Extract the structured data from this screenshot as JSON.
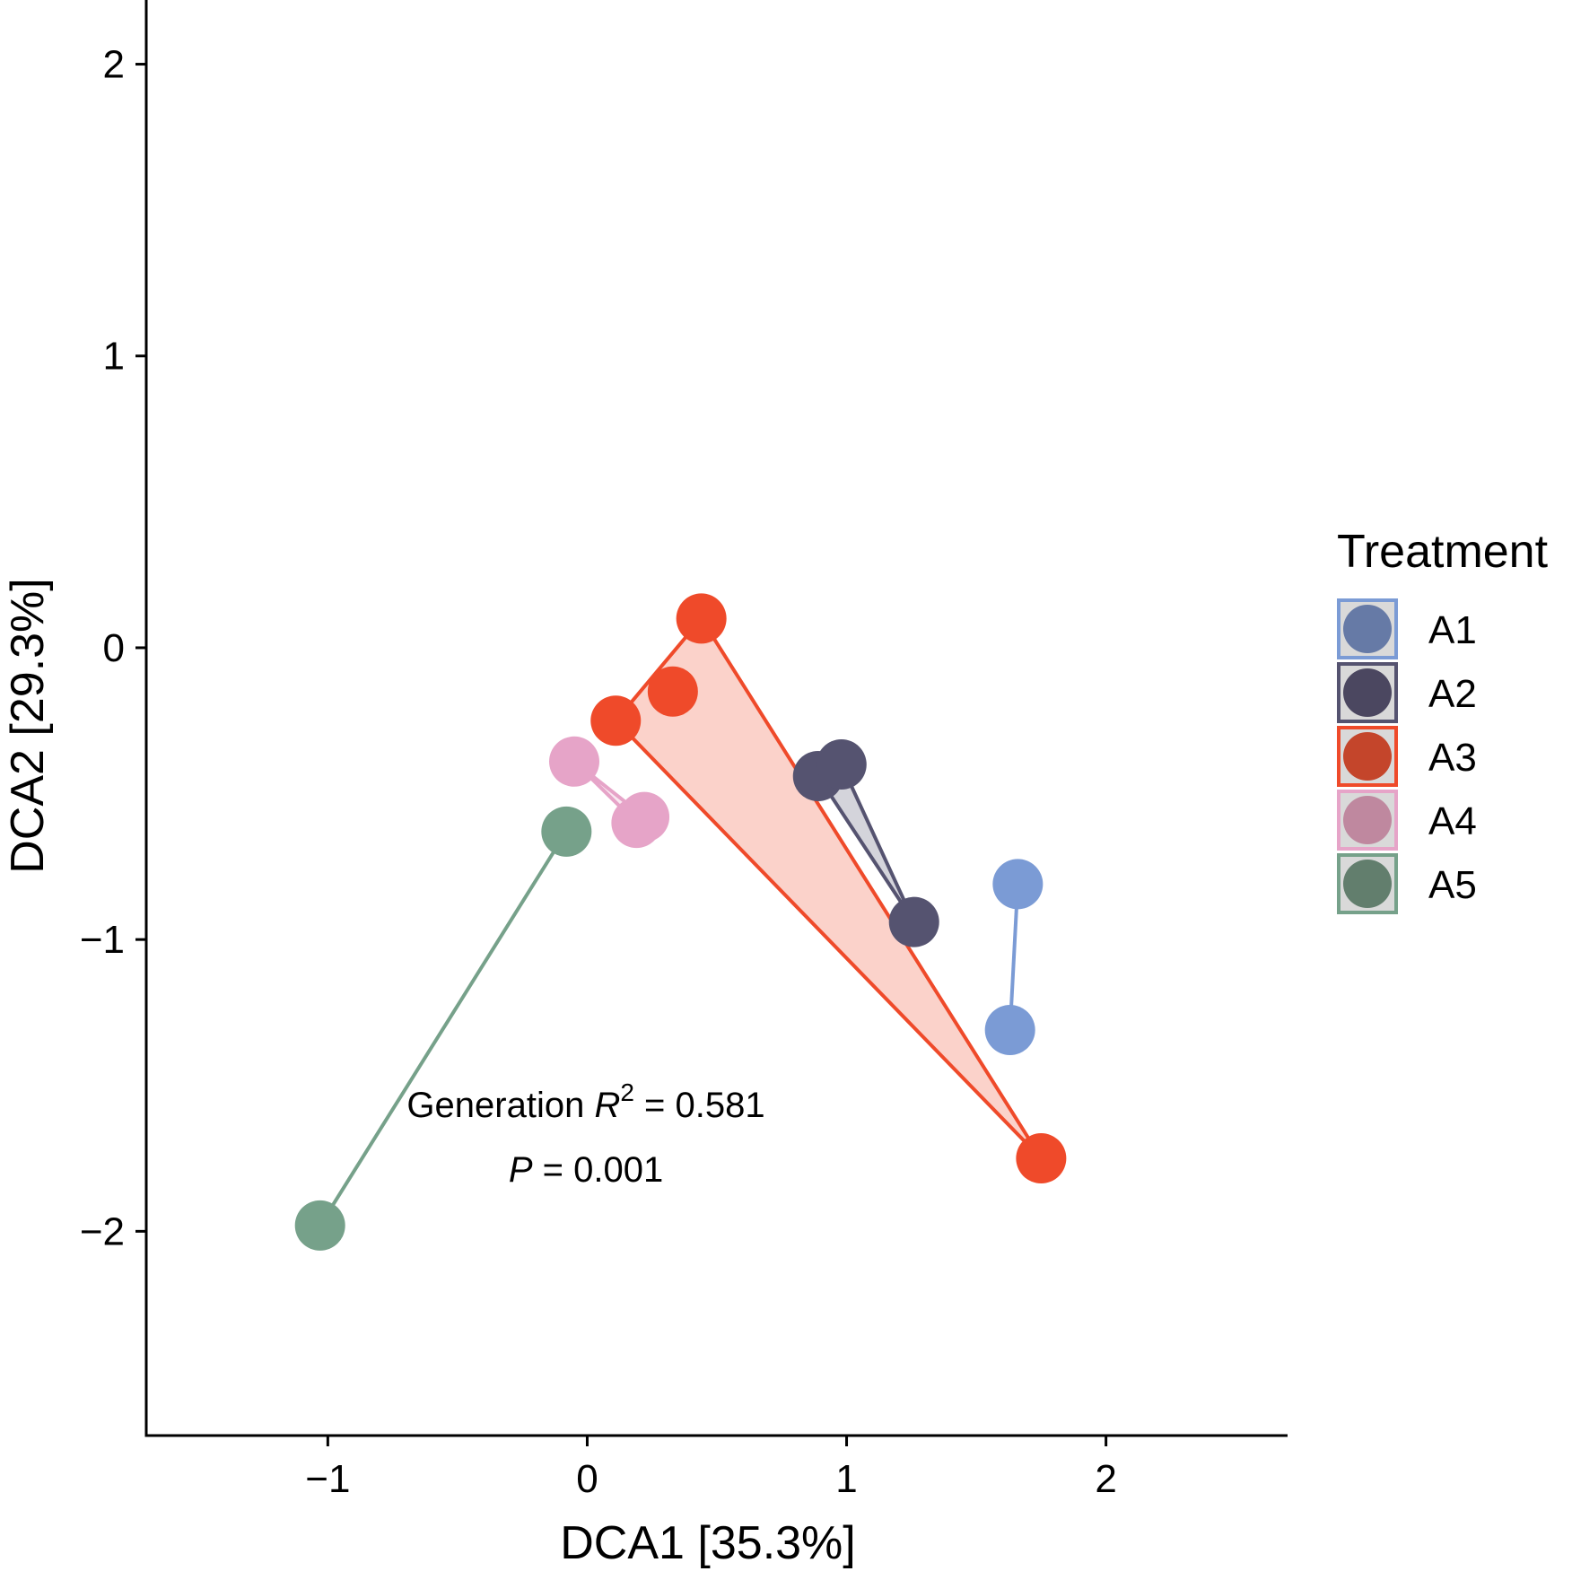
{
  "chart_data": {
    "type": "scatter",
    "xlabel": "DCA1   [35.3%]",
    "ylabel": "DCA2   [29.3%]",
    "xlim": [
      -1.7,
      2.7
    ],
    "ylim": [
      -2.7,
      2.22
    ],
    "x_ticks": [
      -1,
      0,
      1,
      2
    ],
    "y_ticks": [
      -2,
      -1,
      0,
      1,
      2
    ],
    "x_tick_labels": [
      "−1",
      "0",
      "1",
      "2"
    ],
    "y_tick_labels": [
      "−2",
      "−1",
      "0",
      "1",
      "2"
    ],
    "grid": false,
    "legend": {
      "title": "Treatment",
      "placement": "right"
    },
    "series": [
      {
        "name": "A1",
        "color": "#7b9bd5",
        "fill": "#667aa6",
        "points": [
          [
            1.66,
            -0.81
          ],
          [
            1.63,
            -1.31
          ]
        ]
      },
      {
        "name": "A2",
        "color": "#555370",
        "fill": "#4b4760",
        "points": [
          [
            0.89,
            -0.44
          ],
          [
            0.98,
            -0.4
          ],
          [
            1.26,
            -0.94
          ]
        ]
      },
      {
        "name": "A3",
        "color": "#ef4a2a",
        "fill": "#c4452b",
        "points": [
          [
            0.44,
            0.1
          ],
          [
            0.33,
            -0.15
          ],
          [
            0.11,
            -0.25
          ],
          [
            1.75,
            -1.75
          ]
        ]
      },
      {
        "name": "A4",
        "color": "#e6a4c8",
        "fill": "#bf889f",
        "points": [
          [
            -0.05,
            -0.39
          ],
          [
            0.19,
            -0.6
          ],
          [
            0.22,
            -0.58
          ]
        ]
      },
      {
        "name": "A5",
        "color": "#76a18a",
        "fill": "#627e6d",
        "points": [
          [
            -0.08,
            -0.63
          ],
          [
            -1.03,
            -1.98
          ]
        ]
      }
    ],
    "annotations": {
      "line1_prefix": "Generation ",
      "line1_var": "R",
      "line1_sup": "2",
      "line1_suffix": " =  0.581",
      "line2_var": "P",
      "line2_suffix": " =  0.001"
    }
  }
}
